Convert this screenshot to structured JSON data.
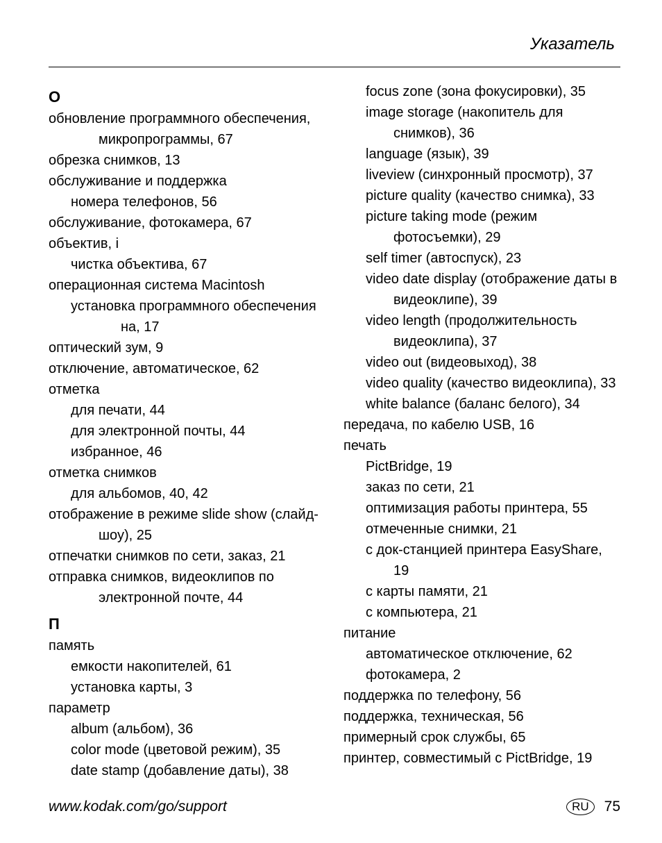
{
  "header": "Указатель",
  "footer": {
    "url": "www.kodak.com/go/support",
    "badge": "RU",
    "page": "75"
  },
  "left": [
    {
      "kind": "head",
      "text": "О"
    },
    {
      "kind": "e0",
      "text": "обновление программного обеспечения, микропрограммы, 67",
      "hang": 2
    },
    {
      "kind": "e0",
      "text": "обрезка снимков, 13"
    },
    {
      "kind": "e0",
      "text": "обслуживание и поддержка"
    },
    {
      "kind": "e1",
      "text": "номера телефонов, 56"
    },
    {
      "kind": "e0",
      "text": "обслуживание, фотокамера, 67"
    },
    {
      "kind": "e0",
      "text": "объектив, i"
    },
    {
      "kind": "e1",
      "text": "чистка объектива, 67"
    },
    {
      "kind": "e0",
      "text": "операционная система Macintosh"
    },
    {
      "kind": "e1",
      "text": "установка программного обеспечения на, 17",
      "hang": 2
    },
    {
      "kind": "e0",
      "text": "оптический зум, 9"
    },
    {
      "kind": "e0",
      "text": "отключение, автоматическое, 62"
    },
    {
      "kind": "e0",
      "text": "отметка"
    },
    {
      "kind": "e1",
      "text": "для печати, 44"
    },
    {
      "kind": "e1",
      "text": "для электронной почты, 44"
    },
    {
      "kind": "e1",
      "text": "избранное, 46"
    },
    {
      "kind": "e0",
      "text": "отметка снимков"
    },
    {
      "kind": "e1",
      "text": "для альбомов, 40, 42"
    },
    {
      "kind": "e0",
      "text": "отображение в режиме slide show (слайд-шоу), 25",
      "hang": 2
    },
    {
      "kind": "e0",
      "text": "отпечатки снимков по сети, заказ, 21"
    },
    {
      "kind": "e0",
      "text": "отправка снимков, видеоклипов по электронной почте, 44",
      "hang": 2
    },
    {
      "kind": "head",
      "text": "П"
    },
    {
      "kind": "e0",
      "text": "память"
    },
    {
      "kind": "e1",
      "text": "емкости накопителей, 61"
    },
    {
      "kind": "e1",
      "text": "установка карты, 3"
    },
    {
      "kind": "e0",
      "text": "параметр"
    },
    {
      "kind": "e1",
      "text": "album (альбом), 36"
    },
    {
      "kind": "e1",
      "text": "color mode (цветовой режим), 35"
    },
    {
      "kind": "e1",
      "text": "date stamp (добавление даты), 38"
    }
  ],
  "right": [
    {
      "kind": "e1",
      "text": "focus zone (зона фокусировки), 35"
    },
    {
      "kind": "e1",
      "text": "image storage (накопитель для снимков), 36",
      "hang": 1
    },
    {
      "kind": "e1",
      "text": "language (язык), 39"
    },
    {
      "kind": "e1",
      "text": "liveview (синхронный просмотр), 37"
    },
    {
      "kind": "e1",
      "text": "picture quality (качество снимка), 33"
    },
    {
      "kind": "e1",
      "text": "picture taking mode (режим фотосъемки), 29",
      "hang": 1
    },
    {
      "kind": "e1",
      "text": "self timer (автоспуск), 23"
    },
    {
      "kind": "e1",
      "text": "video date display (отображение даты в видеоклипе), 39",
      "hang": 1
    },
    {
      "kind": "e1",
      "text": "video length (продолжительность видеоклипа), 37",
      "hang": 1
    },
    {
      "kind": "e1",
      "text": "video out (видеовыход), 38"
    },
    {
      "kind": "e1",
      "text": "video quality (качество видеоклипа), 33",
      "hang": 1
    },
    {
      "kind": "e1",
      "text": "white balance (баланс белого), 34"
    },
    {
      "kind": "e0",
      "text": "передача, по кабелю USB, 16"
    },
    {
      "kind": "e0",
      "text": "печать"
    },
    {
      "kind": "e1",
      "text": "PictBridge, 19"
    },
    {
      "kind": "e1",
      "text": "заказ по сети, 21"
    },
    {
      "kind": "e1",
      "text": "оптимизация работы принтера, 55"
    },
    {
      "kind": "e1",
      "text": "отмеченные снимки, 21"
    },
    {
      "kind": "e1",
      "text": "с док-станцией принтера EasyShare, 19",
      "hang": 1
    },
    {
      "kind": "e1",
      "text": "с карты памяти, 21"
    },
    {
      "kind": "e1",
      "text": "с компьютера, 21"
    },
    {
      "kind": "e0",
      "text": "питание"
    },
    {
      "kind": "e1",
      "text": "автоматическое отключение, 62"
    },
    {
      "kind": "e1",
      "text": "фотокамера, 2"
    },
    {
      "kind": "e0",
      "text": "поддержка по телефону, 56"
    },
    {
      "kind": "e0",
      "text": "поддержка, техническая, 56"
    },
    {
      "kind": "e0",
      "text": "примерный срок службы, 65"
    },
    {
      "kind": "e0",
      "text": "принтер, совместимый с PictBridge, 19"
    }
  ]
}
